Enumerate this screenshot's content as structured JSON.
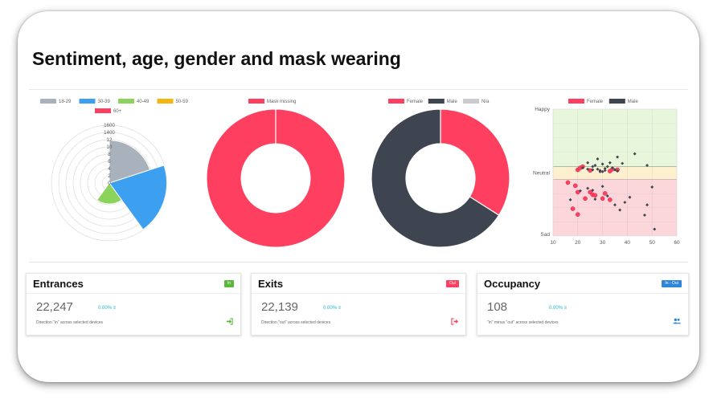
{
  "page_title": "Sentiment, age, gender and mask wearing",
  "colors": {
    "age_18_29": "#a9b1bc",
    "age_30_39": "#3d9ff0",
    "age_40_49": "#8bd35a",
    "age_50_59": "#f5b40f",
    "age_60_plus": "#ff3f5f",
    "mask_missing": "#ff3f5f",
    "female": "#ff3f5f",
    "male": "#3f4451",
    "na": "#c9cbcf",
    "in_badge": "#5bb83d",
    "out_badge": "#ff3f5f",
    "occ_badge": "#2f86d8"
  },
  "chart_data": [
    {
      "type": "polar-area",
      "legend": [
        "18-29",
        "30-39",
        "40-49",
        "50-59",
        "60+"
      ],
      "legend_position": "top",
      "tick_labels": [
        "1600",
        "1400",
        "12",
        "10",
        "8",
        "6",
        "4",
        "2",
        "0"
      ],
      "values": [
        1180,
        1590,
        580,
        40,
        0
      ]
    },
    {
      "type": "doughnut",
      "legend": [
        "Mask missing"
      ],
      "legend_position": "top",
      "values": [
        100
      ]
    },
    {
      "type": "doughnut",
      "legend": [
        "Female",
        "Male",
        "N/a"
      ],
      "legend_position": "top",
      "values": [
        34,
        66,
        0
      ]
    },
    {
      "type": "scatter",
      "legend": [
        "Female",
        "Male"
      ],
      "legend_position": "top",
      "x_ticks": [
        "10",
        "20",
        "30",
        "40",
        "50",
        "60"
      ],
      "xlim": [
        10,
        60
      ],
      "y_labels": [
        "Happy",
        "Neutral",
        "Sad"
      ],
      "grid": true,
      "series": [
        {
          "name": "Female",
          "points": [
            [
              20,
              0.05
            ],
            [
              21,
              0.08
            ],
            [
              22,
              0.1
            ],
            [
              25,
              0.04
            ],
            [
              33,
              0.03
            ],
            [
              34,
              0.06
            ],
            [
              36,
              0.05
            ],
            [
              16,
              -0.15
            ],
            [
              19,
              -0.2
            ],
            [
              20,
              -0.3
            ],
            [
              23,
              -0.4
            ],
            [
              25,
              -0.3
            ],
            [
              26,
              -0.34
            ],
            [
              18,
              -0.56
            ],
            [
              20,
              -0.65
            ],
            [
              30,
              -0.4
            ],
            [
              31,
              -0.32
            ],
            [
              33,
              -0.42
            ],
            [
              27,
              -0.35
            ]
          ]
        },
        {
          "name": "Male",
          "points": [
            [
              22,
              0.08
            ],
            [
              24,
              0.06
            ],
            [
              26,
              0.05
            ],
            [
              27,
              0.12
            ],
            [
              28,
              0.06
            ],
            [
              29,
              0.04
            ],
            [
              30,
              0.02
            ],
            [
              31,
              0.07
            ],
            [
              32,
              0.1
            ],
            [
              33,
              0.16
            ],
            [
              34,
              0.08
            ],
            [
              35,
              0.05
            ],
            [
              36,
              0.03
            ],
            [
              38,
              0.15
            ],
            [
              30,
              0.14
            ],
            [
              31,
              0.04
            ],
            [
              29,
              0.02
            ],
            [
              26,
              0.1
            ],
            [
              24,
              0.16
            ],
            [
              28,
              0.22
            ],
            [
              17,
              -0.42
            ],
            [
              21,
              -0.28
            ],
            [
              24,
              -0.24
            ],
            [
              26,
              -0.27
            ],
            [
              27,
              -0.41
            ],
            [
              30,
              -0.21
            ],
            [
              32,
              -0.36
            ],
            [
              35,
              -0.5
            ],
            [
              37,
              -0.58
            ],
            [
              39,
              -0.46
            ],
            [
              41,
              -0.38
            ],
            [
              48,
              -0.5
            ],
            [
              50,
              -0.22
            ],
            [
              51,
              -0.88
            ],
            [
              47,
              -0.66
            ],
            [
              43,
              0.3
            ],
            [
              48,
              0.12
            ],
            [
              36,
              0.25
            ]
          ]
        }
      ]
    }
  ],
  "cards": [
    {
      "title": "Entrances",
      "badge": "In",
      "value": "22,247",
      "percent": "0.00% ≡",
      "description": "Direction \"in\" across selected devices",
      "icon": "sign-in-icon"
    },
    {
      "title": "Exits",
      "badge": "Out",
      "value": "22,139",
      "percent": "0.00% ≡",
      "description": "Direction \"out\" across selected devices",
      "icon": "sign-out-icon"
    },
    {
      "title": "Occupancy",
      "badge": "In - Out",
      "value": "108",
      "percent": "0.00% ≡",
      "description": "\"in\" minus \"out\" across selected devices",
      "icon": "users-icon"
    }
  ]
}
